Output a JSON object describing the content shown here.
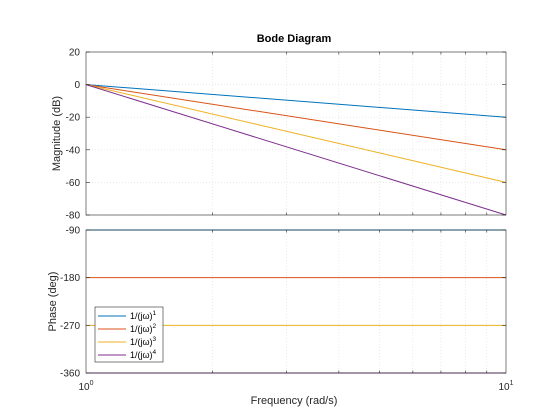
{
  "chart_data": {
    "type": "line",
    "title": "Bode Diagram",
    "xlabel": "Frequency  (rad/s)",
    "xscale": "log",
    "x": [
      1,
      10
    ],
    "xlim": [
      1,
      10
    ],
    "xticks": [
      {
        "base": "10",
        "exp": "0"
      },
      {
        "base": "10",
        "exp": "1"
      }
    ],
    "grid": "on",
    "legend_location": "bottom-left",
    "panels": [
      {
        "id": "magnitude",
        "ylabel": "Magnitude (dB)",
        "ylim": [
          -80,
          20
        ],
        "yticks": [
          20,
          0,
          -20,
          -40,
          -60,
          -80
        ],
        "series": [
          {
            "name": "1/(jω)",
            "exponent": "1",
            "color": "#0072BD",
            "values": [
              0,
              -20
            ]
          },
          {
            "name": "1/(jω)",
            "exponent": "2",
            "color": "#D95319",
            "values": [
              0,
              -40
            ]
          },
          {
            "name": "1/(jω)",
            "exponent": "3",
            "color": "#EDB120",
            "values": [
              0,
              -60
            ]
          },
          {
            "name": "1/(jω)",
            "exponent": "4",
            "color": "#7E2F8E",
            "values": [
              0,
              -80
            ]
          }
        ]
      },
      {
        "id": "phase",
        "ylabel": "Phase (deg)",
        "ylim": [
          -360,
          -90
        ],
        "yticks": [
          -90,
          -180,
          -270,
          -360
        ],
        "series": [
          {
            "name": "1/(jω)",
            "exponent": "1",
            "color": "#0072BD",
            "values": [
              -90,
              -90
            ]
          },
          {
            "name": "1/(jω)",
            "exponent": "2",
            "color": "#D95319",
            "values": [
              -180,
              -180
            ]
          },
          {
            "name": "1/(jω)",
            "exponent": "3",
            "color": "#EDB120",
            "values": [
              -270,
              -270
            ]
          },
          {
            "name": "1/(jω)",
            "exponent": "4",
            "color": "#7E2F8E",
            "values": [
              -360,
              -360
            ]
          }
        ]
      }
    ]
  }
}
